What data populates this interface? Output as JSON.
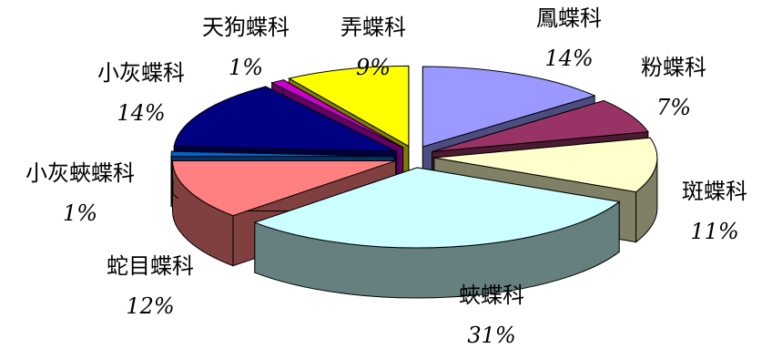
{
  "chart_data": {
    "type": "pie",
    "style": "3d-exploded",
    "title": "",
    "legend": "none",
    "slices": [
      {
        "label": "鳳蝶科",
        "percent_label": "14%",
        "value": 14,
        "top_color": "#9999ff",
        "side_color": "#4d4d80"
      },
      {
        "label": "粉蝶科",
        "percent_label": "7%",
        "value": 7,
        "top_color": "#993366",
        "side_color": "#4d1a33"
      },
      {
        "label": "斑蝶科",
        "percent_label": "11%",
        "value": 11,
        "top_color": "#ffffcc",
        "side_color": "#808066"
      },
      {
        "label": "蛺蝶科",
        "percent_label": "31%",
        "value": 31,
        "top_color": "#ccffff",
        "side_color": "#668080"
      },
      {
        "label": "蛇目蝶科",
        "percent_label": "12%",
        "value": 12,
        "top_color": "#ff8080",
        "side_color": "#804040"
      },
      {
        "label": "小灰蛺蝶科",
        "percent_label": "1%",
        "value": 1,
        "top_color": "#0066cc",
        "side_color": "#003366"
      },
      {
        "label": "小灰蝶科",
        "percent_label": "14%",
        "value": 14,
        "top_color": "#000080",
        "side_color": "#000040"
      },
      {
        "label": "天狗蝶科",
        "percent_label": "1%",
        "value": 1,
        "top_color": "#cc00cc",
        "side_color": "#660066"
      },
      {
        "label": "弄蝶科",
        "percent_label": "9%",
        "value": 9,
        "top_color": "#ffff00",
        "side_color": "#808000"
      }
    ]
  }
}
